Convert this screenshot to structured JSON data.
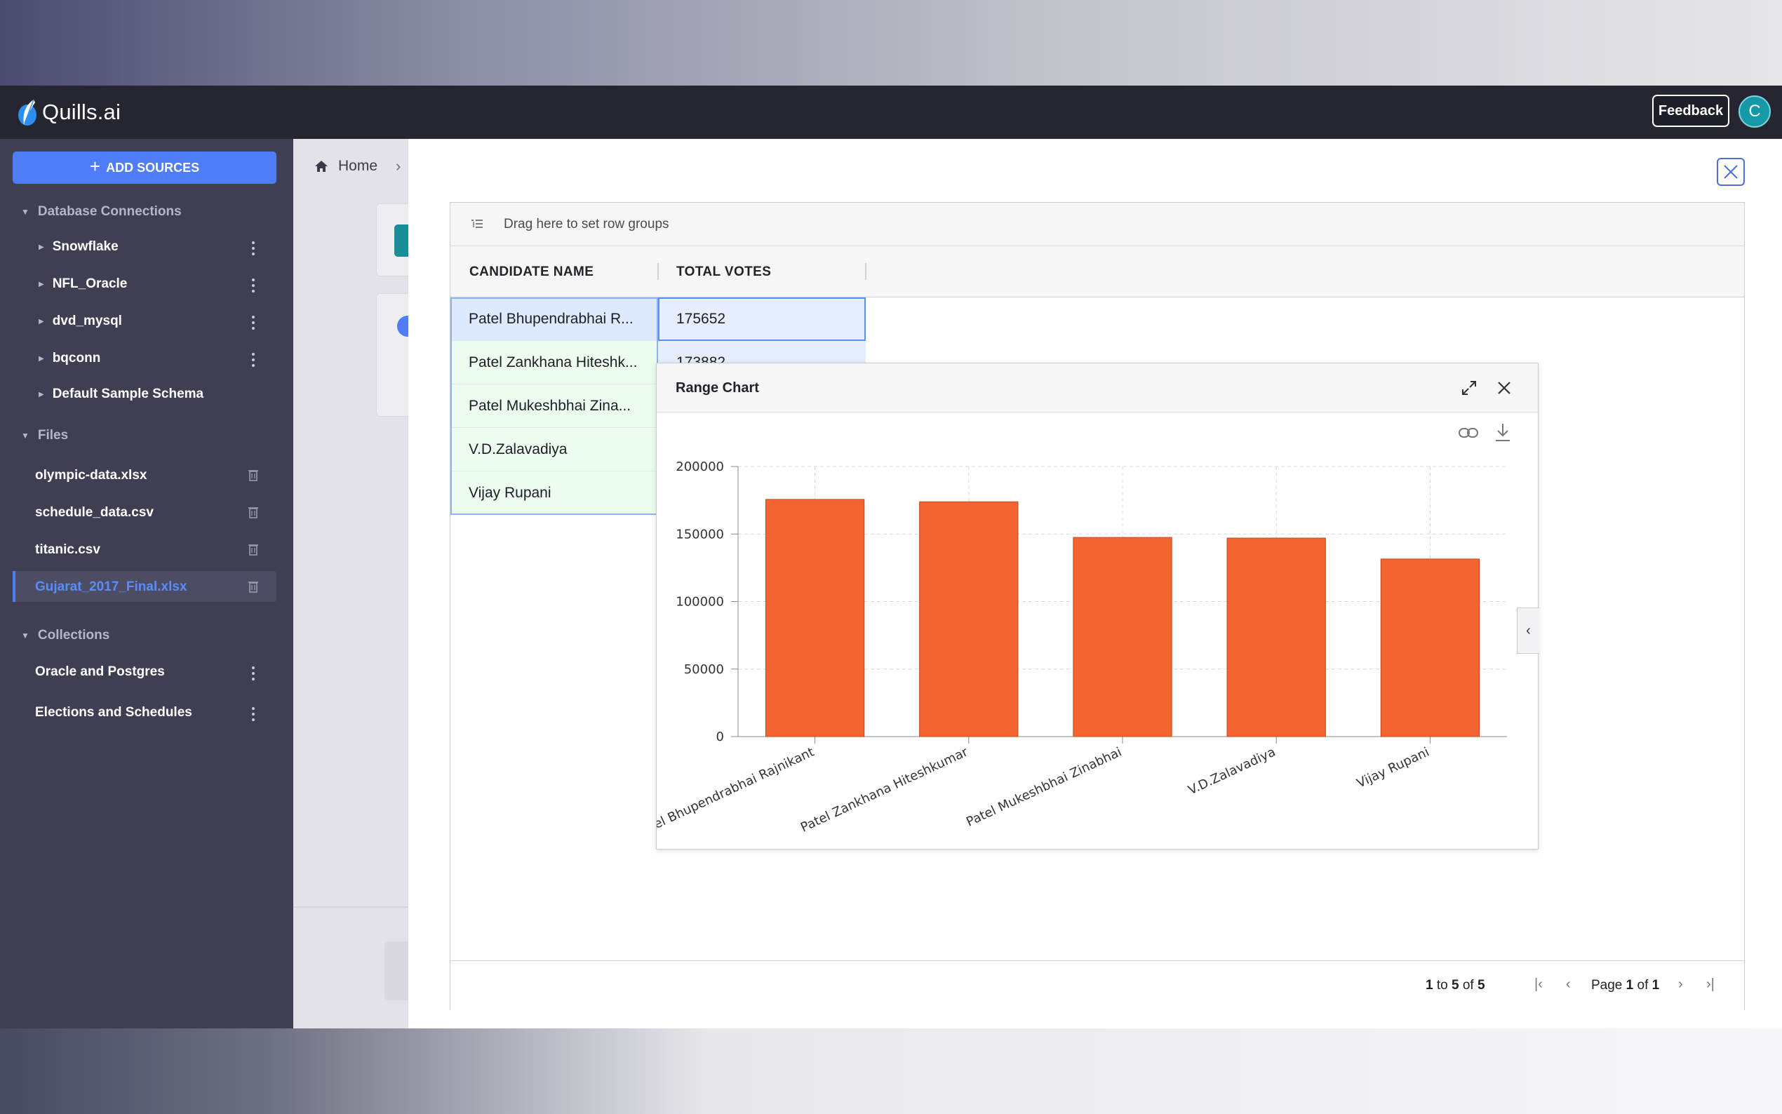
{
  "app": {
    "name": "Quills.ai",
    "feedback_label": "Feedback",
    "avatar_letter": "C"
  },
  "sidebar": {
    "add_sources_label": "ADD SOURCES",
    "db_section": "Database Connections",
    "db_items": [
      "Snowflake",
      "NFL_Oracle",
      "dvd_mysql",
      "bqconn",
      "Default Sample Schema"
    ],
    "files_section": "Files",
    "files": [
      "olympic-data.xlsx",
      "schedule_data.csv",
      "titanic.csv",
      "Gujarat_2017_Final.xlsx"
    ],
    "active_file": "Gujarat_2017_Final.xlsx",
    "collections_section": "Collections",
    "collections": [
      "Oracle and Postgres",
      "Elections and Schedules"
    ]
  },
  "breadcrumb": {
    "home": "Home"
  },
  "grid": {
    "toolbar_text": "Drag here to set row groups",
    "columns": [
      "CANDIDATE NAME",
      "TOTAL VOTES"
    ],
    "rows": [
      {
        "name": "Patel Bhupendrabhai R...",
        "votes": "175652"
      },
      {
        "name": "Patel Zankhana Hiteshk...",
        "votes": "173882"
      },
      {
        "name": "Patel Mukeshbhai Zina...",
        "votes": ""
      },
      {
        "name": "V.D.Zalavadiya",
        "votes": ""
      },
      {
        "name": "Vijay Rupani",
        "votes": ""
      }
    ],
    "pagination": {
      "from": "1",
      "to": "5",
      "total": "5",
      "to_label": "to",
      "of_label": "of",
      "page_label": "Page",
      "page": "1",
      "pages": "1"
    }
  },
  "chart_window": {
    "title": "Range Chart"
  },
  "chart_data": {
    "type": "bar",
    "categories": [
      "Patel Bhupendrabhai Rajnikant",
      "Patel Zankhana Hiteshkumar",
      "Patel Mukeshbhai Zinabhai",
      "V.D.Zalavadiya",
      "Vijay Rupani"
    ],
    "values": [
      175652,
      173882,
      147500,
      147000,
      131500
    ],
    "ylim": [
      0,
      200000
    ],
    "yticks": [
      "0",
      "50000",
      "100000",
      "150000",
      "200000"
    ],
    "grid": true,
    "bar_color": "#f26430",
    "title": "",
    "xlabel": "",
    "ylabel": ""
  },
  "colors": {
    "accent": "#4f7cf7",
    "topbar": "#262631",
    "sidebar": "#3f3f54",
    "avatar": "#1599a6"
  }
}
